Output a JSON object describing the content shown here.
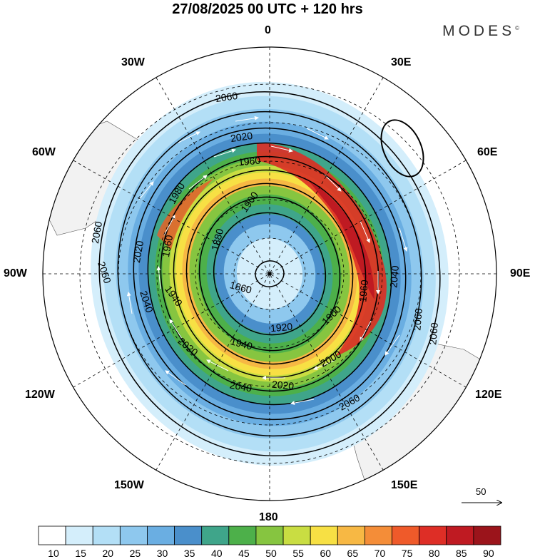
{
  "header": {
    "title": "27/08/2025  00 UTC  + 120 hrs",
    "brand": "MODES",
    "brand_mark": "©"
  },
  "longitude_labels": {
    "lon_0": "0",
    "lon_30e": "30E",
    "lon_60e": "60E",
    "lon_90e": "90E",
    "lon_120e": "120E",
    "lon_150e": "150E",
    "lon_180": "180",
    "lon_150w": "150W",
    "lon_120w": "120W",
    "lon_90w": "90W",
    "lon_60w": "60W",
    "lon_30w": "30W"
  },
  "chart_data": {
    "type": "heatmap",
    "title": "27/08/2025  00 UTC  + 120 hrs",
    "projection": "south polar stereographic",
    "field": "wind speed (shaded) with geopotential height contours and wind vectors",
    "colorbar": {
      "ticks": [
        "10",
        "15",
        "20",
        "25",
        "30",
        "35",
        "40",
        "45",
        "50",
        "55",
        "60",
        "65",
        "70",
        "75",
        "80",
        "85",
        "90"
      ],
      "colors": [
        "#ffffff",
        "#d4eefb",
        "#b3dff6",
        "#8ec8ee",
        "#6aaee2",
        "#4a8fcb",
        "#3fa58a",
        "#4db04a",
        "#86c540",
        "#c9dd42",
        "#f7e044",
        "#f7b844",
        "#f48d38",
        "#ef5a2a",
        "#de2e26",
        "#bf1a22",
        "#9b141b"
      ]
    },
    "contour_labels": {
      "c1860": "1860",
      "c1880": "1880",
      "c1900": "1900",
      "c1920": "1920",
      "c1940": "1940",
      "c1960": "1960",
      "c1980": "1980",
      "c2000": "2000",
      "c2020": "2020",
      "c2040": "2040",
      "c2060": "2060"
    },
    "contour_levels": [
      1860,
      1880,
      1900,
      1920,
      1940,
      1960,
      1980,
      2000,
      2020,
      2040,
      2060
    ],
    "reference_vector": "50"
  }
}
